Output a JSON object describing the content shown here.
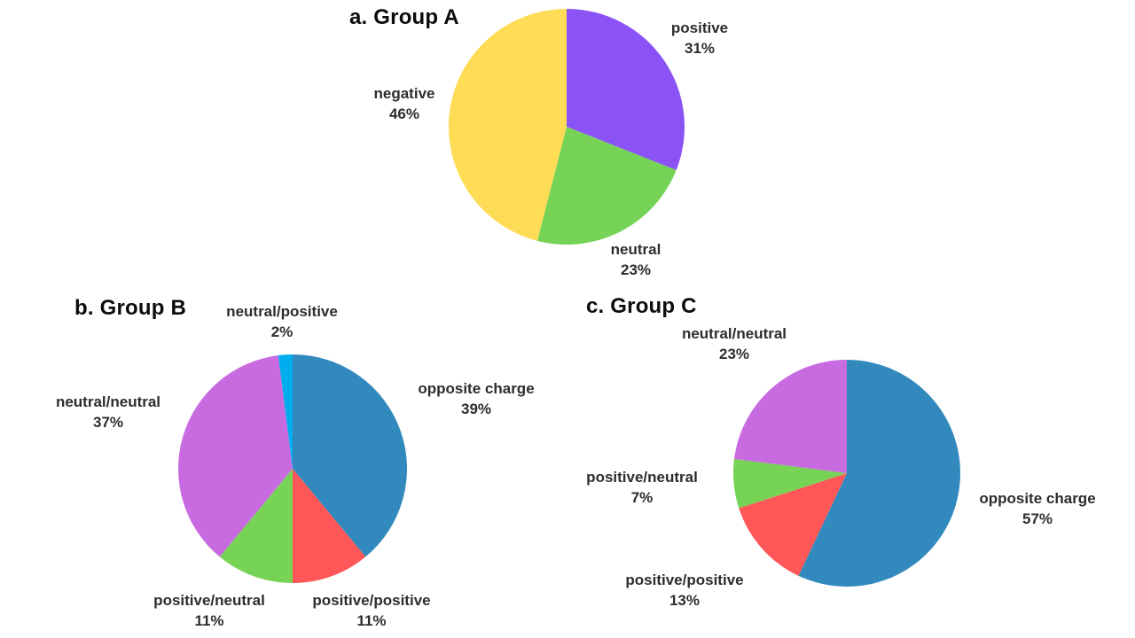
{
  "chart_data": [
    {
      "type": "pie",
      "title": "a. Group A",
      "labels": [
        "positive",
        "neutral",
        "negative"
      ],
      "values": [
        31,
        23,
        46
      ],
      "pct_labels": [
        "31%",
        "23%",
        "46%"
      ],
      "colors": [
        "#8b52f5",
        "#77d356",
        "#ffdc55"
      ],
      "start_angle_deg": 0,
      "direction": "clockwise",
      "legend": "none",
      "label_position": "outside"
    },
    {
      "type": "pie",
      "title": "b. Group B",
      "labels": [
        "opposite charge",
        "positive/positive",
        "positive/neutral",
        "neutral/neutral",
        "neutral/positive"
      ],
      "values": [
        39,
        11,
        11,
        37,
        2
      ],
      "pct_labels": [
        "39%",
        "11%",
        "11%",
        "37%",
        "2%"
      ],
      "colors": [
        "#3189be",
        "#ff5757",
        "#77d356",
        "#c96be0",
        "#00adef"
      ],
      "start_angle_deg": 0,
      "direction": "clockwise",
      "legend": "none",
      "label_position": "outside"
    },
    {
      "type": "pie",
      "title": "c. Group C",
      "labels": [
        "opposite charge",
        "positive/positive",
        "positive/neutral",
        "neutral/neutral"
      ],
      "values": [
        57,
        13,
        7,
        23
      ],
      "pct_labels": [
        "57%",
        "13%",
        "7%",
        "23%"
      ],
      "colors": [
        "#3189be",
        "#ff5757",
        "#77d356",
        "#c96be0"
      ],
      "start_angle_deg": 0,
      "direction": "clockwise",
      "legend": "none",
      "label_position": "outside"
    }
  ]
}
